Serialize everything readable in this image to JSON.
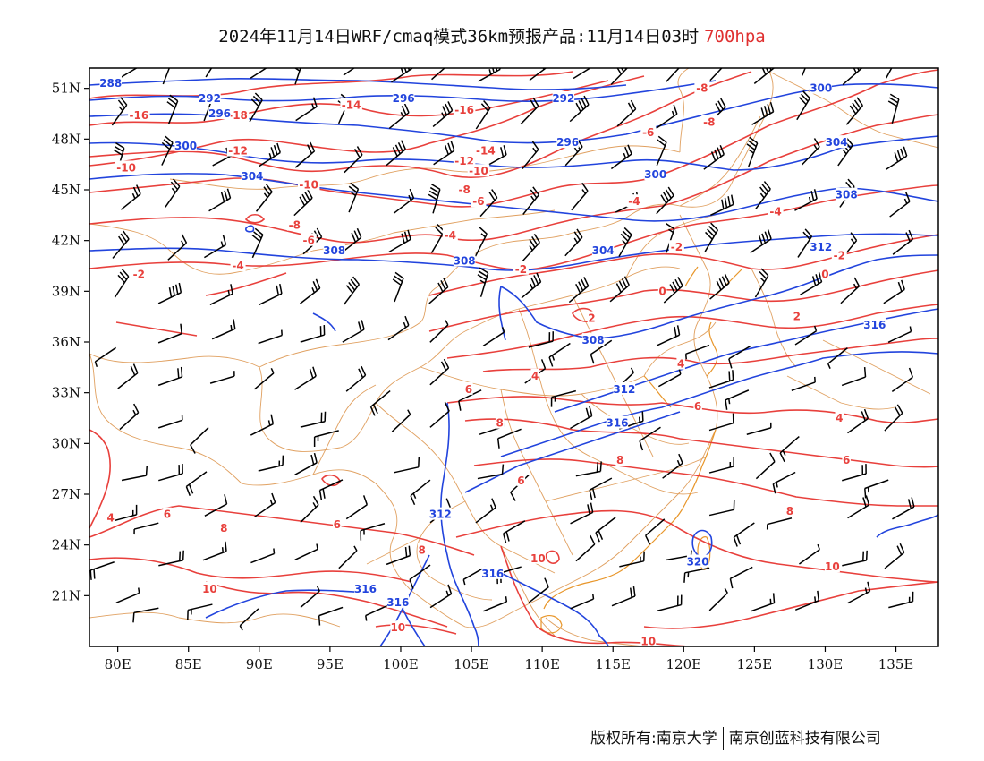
{
  "title": {
    "main": "2024年11月14日WRF/cmaq模式36km预报产品:11月14日03时",
    "level": "700hpa"
  },
  "footer": {
    "copyright": "版权所有:南京大学",
    "company": "南京创蓝科技有限公司"
  },
  "axes": {
    "lon_range": [
      78,
      138
    ],
    "lat_range": [
      18,
      52.2
    ],
    "lon_ticks": [
      {
        "value": 80,
        "label": "80E"
      },
      {
        "value": 85,
        "label": "85E"
      },
      {
        "value": 90,
        "label": "90E"
      },
      {
        "value": 95,
        "label": "95E"
      },
      {
        "value": 100,
        "label": "100E"
      },
      {
        "value": 105,
        "label": "105E"
      },
      {
        "value": 110,
        "label": "110E"
      },
      {
        "value": 115,
        "label": "115E"
      },
      {
        "value": 120,
        "label": "120E"
      },
      {
        "value": 125,
        "label": "125E"
      },
      {
        "value": 130,
        "label": "130E"
      },
      {
        "value": 135,
        "label": "135E"
      }
    ],
    "lat_ticks": [
      {
        "value": 51,
        "label": "51N"
      },
      {
        "value": 48,
        "label": "48N"
      },
      {
        "value": 45,
        "label": "45N"
      },
      {
        "value": 42,
        "label": "42N"
      },
      {
        "value": 39,
        "label": "39N"
      },
      {
        "value": 36,
        "label": "36N"
      },
      {
        "value": 33,
        "label": "33N"
      },
      {
        "value": 30,
        "label": "30N"
      },
      {
        "value": 27,
        "label": "27N"
      },
      {
        "value": 24,
        "label": "24N"
      },
      {
        "value": 21,
        "label": "21N"
      }
    ]
  },
  "colors": {
    "temperature": "#e8403c",
    "height": "#2244dd",
    "boundary": "#e0a060",
    "coast": "#e8962a",
    "wind": "#000000",
    "level_text": "#e03030"
  },
  "temperature_labels": [
    {
      "text": "-16",
      "lon": 81.5,
      "lat": 49.4
    },
    {
      "text": "-18",
      "lon": 88.5,
      "lat": 49.4
    },
    {
      "text": "-12",
      "lon": 88.5,
      "lat": 47.3
    },
    {
      "text": "-10",
      "lon": 80.6,
      "lat": 46.3
    },
    {
      "text": "-14",
      "lon": 96.5,
      "lat": 50.0
    },
    {
      "text": "-16",
      "lon": 104.5,
      "lat": 49.7
    },
    {
      "text": "-14",
      "lon": 106.0,
      "lat": 47.3
    },
    {
      "text": "-12",
      "lon": 104.5,
      "lat": 46.7
    },
    {
      "text": "-10",
      "lon": 105.5,
      "lat": 46.1
    },
    {
      "text": "-8",
      "lon": 104.5,
      "lat": 45.0
    },
    {
      "text": "-6",
      "lon": 105.5,
      "lat": 44.3
    },
    {
      "text": "-10",
      "lon": 93.5,
      "lat": 45.3
    },
    {
      "text": "-8",
      "lon": 92.5,
      "lat": 42.9
    },
    {
      "text": "-6",
      "lon": 93.5,
      "lat": 42.0
    },
    {
      "text": "-4",
      "lon": 88.5,
      "lat": 40.5
    },
    {
      "text": "-2",
      "lon": 81.5,
      "lat": 40.0
    },
    {
      "text": "-4",
      "lon": 103.5,
      "lat": 42.3
    },
    {
      "text": "-2",
      "lon": 108.5,
      "lat": 40.3
    },
    {
      "text": "-8",
      "lon": 121.3,
      "lat": 51.0
    },
    {
      "text": "-6",
      "lon": 117.5,
      "lat": 48.4
    },
    {
      "text": "-8",
      "lon": 121.8,
      "lat": 49.0
    },
    {
      "text": "-4",
      "lon": 116.5,
      "lat": 44.3
    },
    {
      "text": "-2",
      "lon": 119.5,
      "lat": 41.6
    },
    {
      "text": "-4",
      "lon": 126.5,
      "lat": 43.7
    },
    {
      "text": "0",
      "lon": 118.5,
      "lat": 39.0
    },
    {
      "text": "-2",
      "lon": 131.0,
      "lat": 41.1
    },
    {
      "text": "0",
      "lon": 130.0,
      "lat": 40.0
    },
    {
      "text": "2",
      "lon": 128.0,
      "lat": 37.5
    },
    {
      "text": "4",
      "lon": 119.8,
      "lat": 34.7
    },
    {
      "text": "2",
      "lon": 113.5,
      "lat": 37.4
    },
    {
      "text": "4",
      "lon": 109.5,
      "lat": 34.0
    },
    {
      "text": "6",
      "lon": 104.8,
      "lat": 33.2
    },
    {
      "text": "6",
      "lon": 121.0,
      "lat": 32.2
    },
    {
      "text": "4",
      "lon": 131.0,
      "lat": 31.5
    },
    {
      "text": "6",
      "lon": 131.5,
      "lat": 29.0
    },
    {
      "text": "8",
      "lon": 107.0,
      "lat": 31.2
    },
    {
      "text": "8",
      "lon": 115.5,
      "lat": 29.0
    },
    {
      "text": "8",
      "lon": 127.5,
      "lat": 26.0
    },
    {
      "text": "10",
      "lon": 130.5,
      "lat": 22.7
    },
    {
      "text": "4",
      "lon": 79.5,
      "lat": 25.6
    },
    {
      "text": "6",
      "lon": 83.5,
      "lat": 25.8
    },
    {
      "text": "8",
      "lon": 87.5,
      "lat": 25.0
    },
    {
      "text": "6",
      "lon": 95.5,
      "lat": 25.2
    },
    {
      "text": "8",
      "lon": 101.5,
      "lat": 23.7
    },
    {
      "text": "10",
      "lon": 109.7,
      "lat": 23.2
    },
    {
      "text": "10",
      "lon": 86.5,
      "lat": 21.4
    },
    {
      "text": "10",
      "lon": 99.8,
      "lat": 19.1
    },
    {
      "text": "10",
      "lon": 117.5,
      "lat": 18.3
    },
    {
      "text": "6",
      "lon": 108.5,
      "lat": 27.8
    }
  ],
  "height_labels": [
    {
      "text": "288",
      "lon": 79.5,
      "lat": 51.3
    },
    {
      "text": "292",
      "lon": 86.5,
      "lat": 50.4
    },
    {
      "text": "296",
      "lon": 87.2,
      "lat": 49.5
    },
    {
      "text": "300",
      "lon": 84.8,
      "lat": 47.6
    },
    {
      "text": "296",
      "lon": 100.2,
      "lat": 50.4
    },
    {
      "text": "292",
      "lon": 111.5,
      "lat": 50.4
    },
    {
      "text": "296",
      "lon": 111.8,
      "lat": 47.8
    },
    {
      "text": "300",
      "lon": 118.0,
      "lat": 45.9
    },
    {
      "text": "300",
      "lon": 129.7,
      "lat": 51.0
    },
    {
      "text": "304",
      "lon": 130.8,
      "lat": 47.8
    },
    {
      "text": "304",
      "lon": 89.5,
      "lat": 45.8
    },
    {
      "text": "308",
      "lon": 131.5,
      "lat": 44.7
    },
    {
      "text": "304",
      "lon": 114.3,
      "lat": 41.4
    },
    {
      "text": "308",
      "lon": 95.3,
      "lat": 41.4
    },
    {
      "text": "308",
      "lon": 104.5,
      "lat": 40.8
    },
    {
      "text": "312",
      "lon": 129.7,
      "lat": 41.6
    },
    {
      "text": "316",
      "lon": 133.5,
      "lat": 37.0
    },
    {
      "text": "308",
      "lon": 113.6,
      "lat": 36.1
    },
    {
      "text": "312",
      "lon": 115.8,
      "lat": 33.2
    },
    {
      "text": "316",
      "lon": 115.3,
      "lat": 31.2
    },
    {
      "text": "312",
      "lon": 102.8,
      "lat": 25.8
    },
    {
      "text": "316",
      "lon": 106.5,
      "lat": 22.3
    },
    {
      "text": "316",
      "lon": 97.5,
      "lat": 21.4
    },
    {
      "text": "316",
      "lon": 99.8,
      "lat": 20.6
    },
    {
      "text": "320",
      "lon": 121.0,
      "lat": 23.0
    }
  ]
}
